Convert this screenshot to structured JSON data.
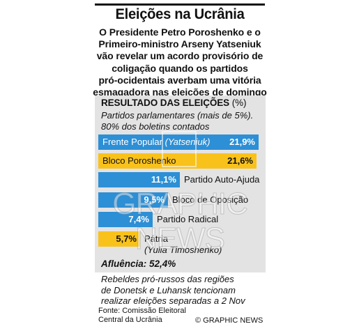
{
  "title": "Eleições na Ucrânia",
  "subtitle_lines": [
    "O Presidente Petro Poroshenko e o",
    "Primeiro-ministro Arseny Yatseniuk",
    "vão revelar um acordo provisório de",
    "coligação quando os partidos",
    "pró-ocidentais averbam uma vitória",
    "esmagadora nas eleições de domingo"
  ],
  "panel": {
    "heading": "RESULTADO DAS ELEIÇÕES",
    "heading_unit": "(%)",
    "note_lines": [
      "Partidos parlamentares (mais de 5%).",
      "80% dos boletins contados"
    ]
  },
  "colors": {
    "blue": "#2d8fd5",
    "yellow": "#f9c21b",
    "panel": "#e3e3e3"
  },
  "chart_data": {
    "type": "bar",
    "orientation": "horizontal",
    "title": "RESULTADO DAS ELEIÇÕES",
    "unit": "%",
    "categories": [
      "Frente Popular",
      "Bloco Poroshenko",
      "Partido Auto-Ajuda",
      "Bloco de Oposição",
      "Partido Radical",
      "Pátria"
    ],
    "sublabels": [
      "(Yatseniuk)",
      "",
      "",
      "",
      "",
      "(Yulia Timoshenko)"
    ],
    "values": [
      21.9,
      21.6,
      11.1,
      9.5,
      7.4,
      5.7
    ],
    "value_labels": [
      "21,9%",
      "21,6%",
      "11,1%",
      "9,5%",
      "7,4%",
      "5,7%"
    ],
    "bar_colors": [
      "#2d8fd5",
      "#f9c21b",
      "#2d8fd5",
      "#2d8fd5",
      "#2d8fd5",
      "#f9c21b"
    ],
    "label_inside": [
      true,
      true,
      false,
      false,
      false,
      false
    ]
  },
  "turnout": "Afluência: 52,4%",
  "footer_note_lines": [
    "Rebeldes pró-russos das regiões",
    "de Donetsk e Luhansk tencionam",
    "realizar eleições separadas a 2 Nov"
  ],
  "source_lines": [
    "Fonte: Comissão Eleitoral",
    "Central da Ucrânia"
  ],
  "credit": "© GRAPHIC NEWS",
  "watermark": "GRAPHIC NEWS"
}
